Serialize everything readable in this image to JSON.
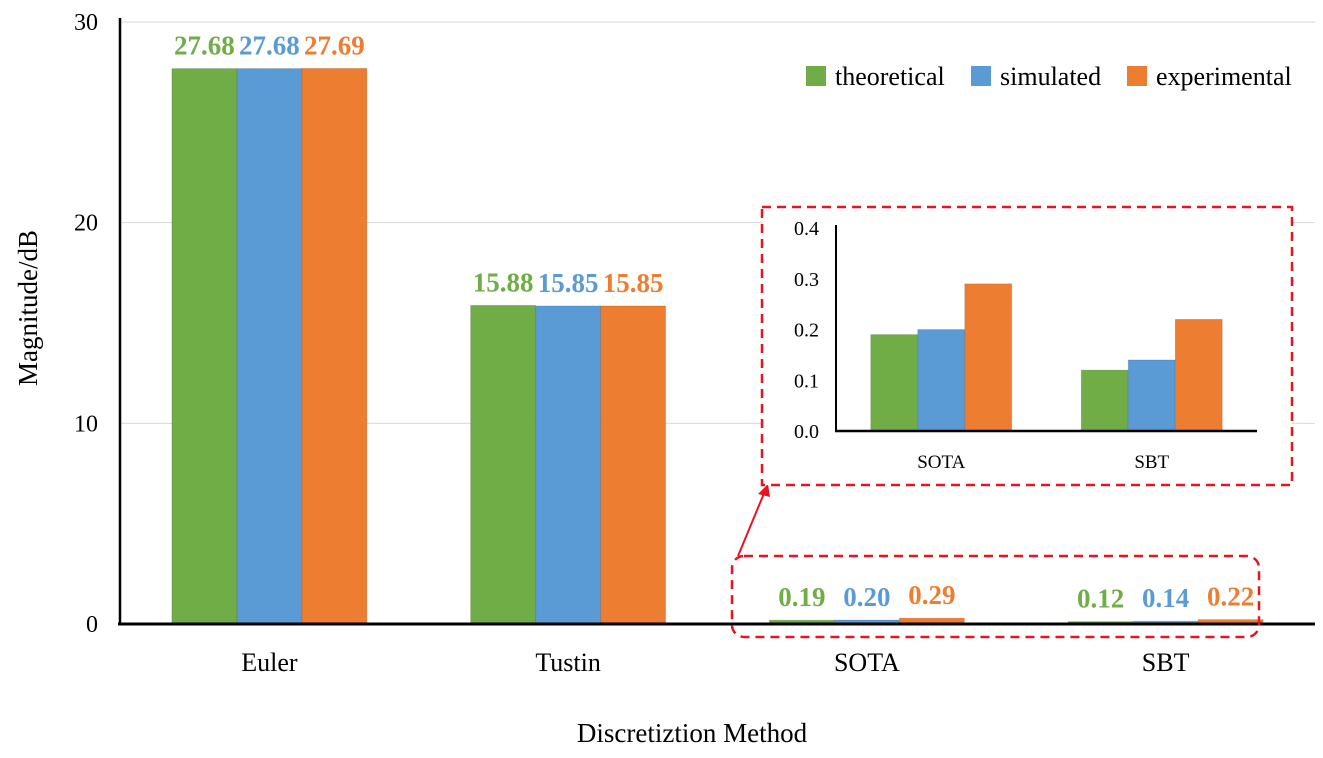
{
  "chart_data": [
    {
      "type": "bar",
      "categories": [
        "Euler",
        "Tustin",
        "SOTA",
        "SBT"
      ],
      "series": [
        {
          "name": "theoretical",
          "color": "#70AD47",
          "values": [
            27.68,
            15.88,
            0.19,
            0.12
          ]
        },
        {
          "name": "simulated",
          "color": "#5B9BD5",
          "values": [
            27.68,
            15.85,
            0.2,
            0.14
          ]
        },
        {
          "name": "experimental",
          "color": "#ED7D31",
          "values": [
            27.69,
            15.85,
            0.29,
            0.22
          ]
        }
      ],
      "data_labels": [
        [
          "27.68",
          "15.88",
          "0.19",
          "0.12"
        ],
        [
          "27.68",
          "15.85",
          "0.20",
          "0.14"
        ],
        [
          "27.69",
          "15.85",
          "0.29",
          "0.22"
        ]
      ],
      "title": "",
      "xlabel": "Discretiztion Method",
      "ylabel": "Magnitude/dB",
      "ylim": [
        0,
        30
      ],
      "yticks": [
        "0",
        "10",
        "20",
        "30"
      ],
      "grid": true,
      "legend": "top-right"
    },
    {
      "type": "bar",
      "role": "inset zoom of SOTA and SBT",
      "categories": [
        "SOTA",
        "SBT"
      ],
      "series": [
        {
          "name": "theoretical",
          "color": "#70AD47",
          "values": [
            0.19,
            0.12
          ]
        },
        {
          "name": "simulated",
          "color": "#5B9BD5",
          "values": [
            0.2,
            0.14
          ]
        },
        {
          "name": "experimental",
          "color": "#ED7D31",
          "values": [
            0.29,
            0.22
          ]
        }
      ],
      "ylim": [
        0,
        0.4
      ],
      "yticks": [
        "0.0",
        "0.1",
        "0.2",
        "0.3",
        "0.4"
      ],
      "grid": false
    }
  ]
}
